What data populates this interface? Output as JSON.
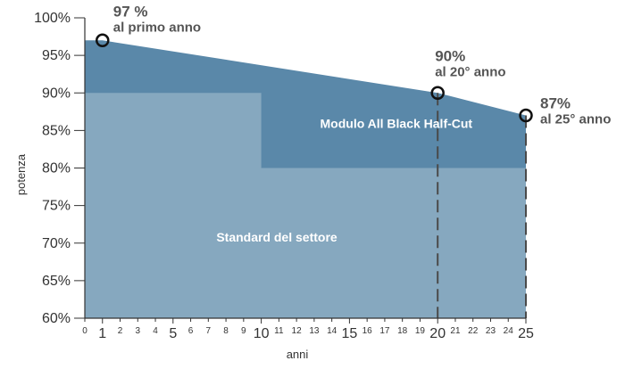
{
  "chart_data": {
    "type": "area",
    "xlabel": "anni",
    "ylabel": "potenza",
    "xlim": [
      0,
      25
    ],
    "ylim": [
      60,
      100
    ],
    "y_ticks": [
      "60%",
      "65%",
      "70%",
      "75%",
      "80%",
      "85%",
      "90%",
      "95%",
      "100%"
    ],
    "x_ticks": [
      "0",
      "1",
      "2",
      "3",
      "4",
      "5",
      "6",
      "7",
      "8",
      "9",
      "10",
      "11",
      "12",
      "13",
      "14",
      "15",
      "16",
      "17",
      "18",
      "19",
      "20",
      "21",
      "22",
      "23",
      "24",
      "25"
    ],
    "x_major_ticks": [
      1,
      5,
      10,
      15,
      20,
      25
    ],
    "series": [
      {
        "name": "Modulo All Black Half-Cut",
        "color": "#5a88a9",
        "x": [
          0,
          1,
          20,
          25
        ],
        "y": [
          97,
          97,
          90,
          87
        ]
      },
      {
        "name": "Standard del settore",
        "color": "#86a8bf",
        "x": [
          0,
          10,
          10,
          25
        ],
        "y": [
          90,
          90,
          80,
          80
        ]
      }
    ],
    "annotations": [
      {
        "x": 1,
        "y": 97,
        "value": "97 %",
        "text": "al primo anno"
      },
      {
        "x": 20,
        "y": 90,
        "value": "90%",
        "text": "al 20° anno"
      },
      {
        "x": 25,
        "y": 87,
        "value": "87%",
        "text": "al 25° anno"
      }
    ],
    "reference_lines_x": [
      20,
      25
    ],
    "grid": false
  }
}
